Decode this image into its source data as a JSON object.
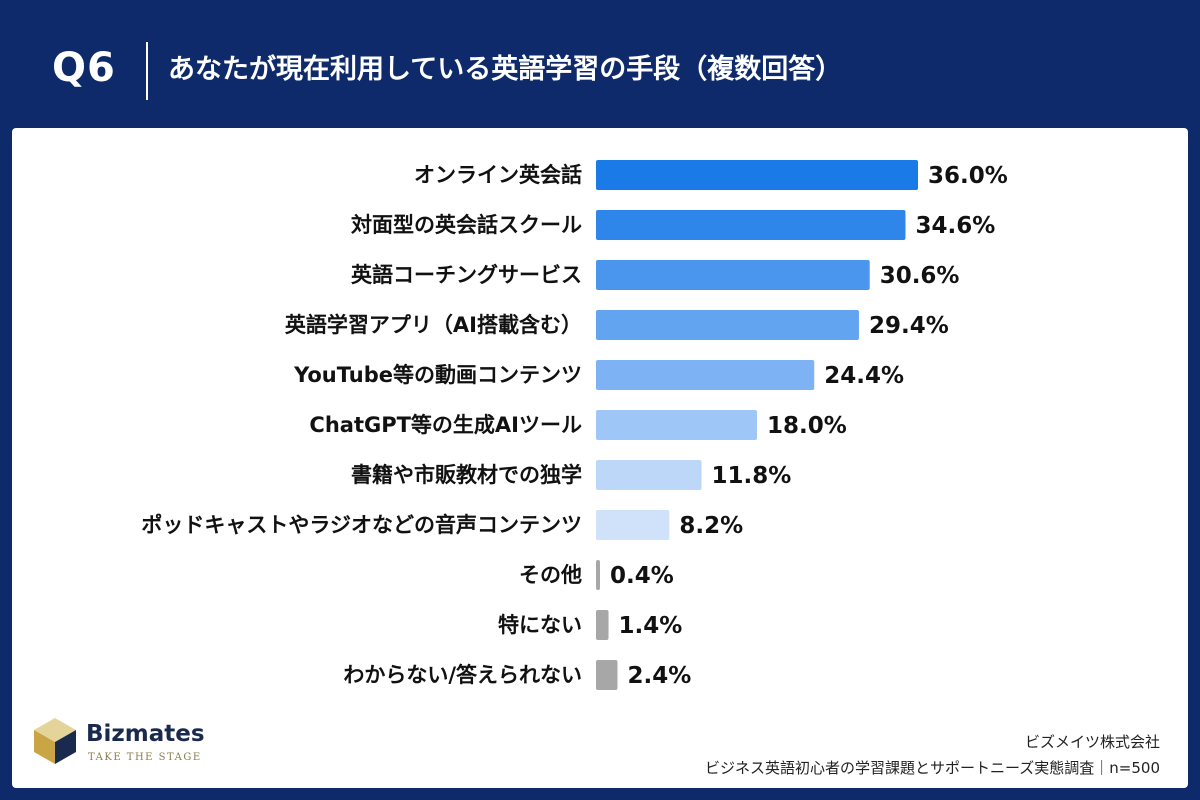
{
  "header": {
    "question_number": "Q6",
    "title": "あなたが現在利用している英語学習の手段（複数回答）"
  },
  "chart_data": {
    "type": "bar",
    "orientation": "horizontal",
    "categories": [
      "オンライン英会話",
      "対面型の英会話スクール",
      "英語コーチングサービス",
      "英語学習アプリ（AI搭載含む）",
      "YouTube等の動画コンテンツ",
      "ChatGPT等の生成AIツール",
      "書籍や市販教材での独学",
      "ポッドキャストやラジオなどの音声コンテンツ",
      "その他",
      "特にない",
      "わからない/答えられない"
    ],
    "values": [
      36.0,
      34.6,
      30.6,
      29.4,
      24.4,
      18.0,
      11.8,
      8.2,
      0.4,
      1.4,
      2.4
    ],
    "value_labels": [
      "36.0%",
      "34.6%",
      "30.6%",
      "29.4%",
      "24.4%",
      "18.0%",
      "11.8%",
      "8.2%",
      "0.4%",
      "1.4%",
      "2.4%"
    ],
    "unit": "%",
    "xlim": [
      0,
      36.0
    ],
    "bar_colors": [
      "#1a7ae8",
      "#2f86ea",
      "#4a95ee",
      "#63a4f1",
      "#7db3f4",
      "#9ec6f6",
      "#bcd7f8",
      "#cfe2fa",
      "#a7a7a7",
      "#a7a7a7",
      "#a7a7a7"
    ],
    "grid": false,
    "legend": "none",
    "title": "",
    "xlabel": "",
    "ylabel": ""
  },
  "brand": {
    "name": "Bizmates",
    "tagline": "TAKE THE STAGE",
    "mark_colors": [
      "#c9a545",
      "#1a2a4e",
      "#e5d49a"
    ]
  },
  "footer": {
    "company": "ビズメイツ株式会社",
    "survey": "ビジネス英語初心者の学習課題とサポートニーズ実態調査｜n=500"
  }
}
